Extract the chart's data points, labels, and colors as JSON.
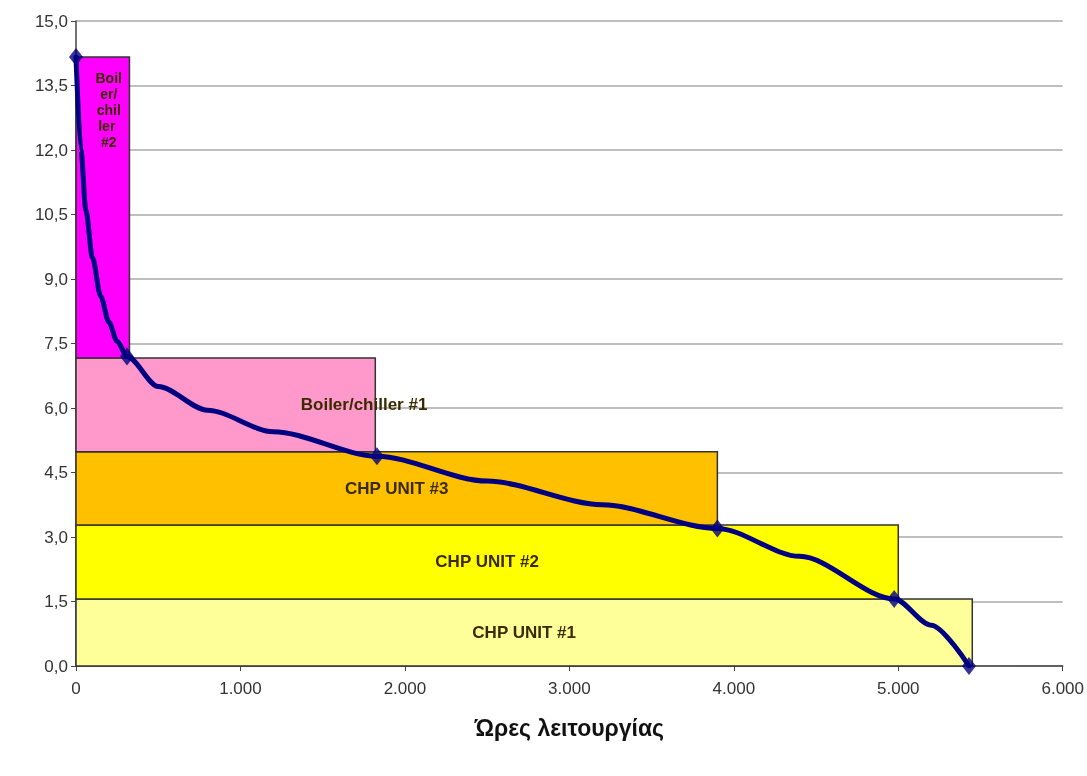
{
  "chart_data": {
    "type": "area",
    "xlabel": "Ώρες λειτουργίας",
    "stacked": true,
    "series": [
      {
        "name": "CHP UNIT #1",
        "color": "#ffff99",
        "x": [
          0,
          5450
        ],
        "values": [
          1.56,
          1.56
        ]
      },
      {
        "name": "CHP UNIT #2",
        "color": "#ffff00",
        "x": [
          0,
          5000
        ],
        "values": [
          1.72,
          1.72
        ]
      },
      {
        "name": "CHP UNIT #3",
        "color": "#ffc000",
        "x": [
          0,
          3900
        ],
        "values": [
          1.7,
          1.7
        ]
      },
      {
        "name": "Boiler/chiller #1",
        "color": "#ff99cc",
        "x": [
          0,
          1820
        ],
        "values": [
          2.18,
          2.18
        ]
      },
      {
        "name": "Boiler/chiller #2",
        "color": "#ff00ff",
        "x": [
          0,
          325
        ],
        "values": [
          7.0,
          7.0
        ]
      },
      {
        "type": "line",
        "color": "#000080",
        "marker": "none",
        "x": [
          0,
          30,
          60,
          100,
          150,
          200,
          250,
          310,
          500,
          800,
          1200,
          1830,
          2500,
          3200,
          3900,
          4400,
          4975,
          5200,
          5430
        ],
        "values": [
          14.16,
          12.0,
          10.6,
          9.5,
          8.6,
          8.0,
          7.55,
          7.2,
          6.5,
          5.95,
          5.45,
          4.88,
          4.3,
          3.75,
          3.2,
          2.55,
          1.56,
          0.95,
          0
        ]
      },
      {
        "type": "scatter",
        "color": "#000080",
        "marker": "diamond",
        "x": [
          0,
          310,
          1830,
          3900,
          4975,
          5430
        ],
        "values": [
          14.16,
          7.2,
          4.88,
          3.2,
          1.56,
          0
        ]
      }
    ],
    "xlim": [
      0,
      6000
    ],
    "xticks": [
      0,
      {
        "value": 1000,
        "label": "1.000"
      },
      {
        "value": 2000,
        "label": "2.000"
      },
      {
        "value": 3000,
        "label": "3.000"
      },
      {
        "value": 4000,
        "label": "4.000"
      },
      {
        "value": 5000,
        "label": "5.000"
      },
      {
        "value": 6000,
        "label": "6.000"
      }
    ],
    "ylim": [
      0,
      15
    ],
    "yticks": [
      {
        "value": 0,
        "label": "0,0"
      },
      {
        "value": 1.5,
        "label": "1,5"
      },
      {
        "value": 3,
        "label": "3,0"
      },
      {
        "value": 4.5,
        "label": "4,5"
      },
      {
        "value": 6,
        "label": "6,0"
      },
      {
        "value": 7.5,
        "label": "7,5"
      },
      {
        "value": 9,
        "label": "9,0"
      },
      {
        "value": 10.5,
        "label": "10,5"
      },
      {
        "value": 12,
        "label": "12,0"
      },
      {
        "value": 13.5,
        "label": "13,5"
      },
      {
        "value": 15,
        "label": "15,0"
      }
    ],
    "grid": "y",
    "legend": false
  }
}
